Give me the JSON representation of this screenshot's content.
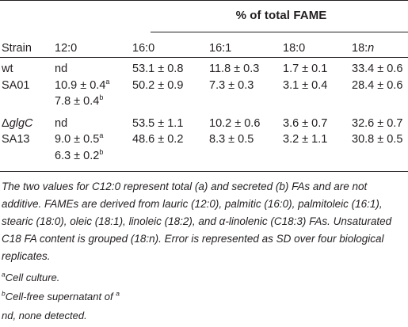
{
  "heading": "% of total FAME",
  "columns": [
    "Strain",
    "12:0",
    "16:0",
    "16:1",
    "18:0",
    "18:"
  ],
  "columns_italic_suffix": "n",
  "rows": [
    {
      "strain_prefix": "",
      "strain_italic": "",
      "strain": "wt",
      "c12": "nd",
      "c12_sup": "",
      "c12b": "",
      "c12b_sup": "",
      "c16": "53.1 ± 0.8",
      "c161": "11.8 ± 0.3",
      "c18": "1.7 ± 0.1",
      "c18n": "33.4 ± 0.6"
    },
    {
      "strain_prefix": "",
      "strain_italic": "",
      "strain": "SA01",
      "c12": "10.9 ± 0.4",
      "c12_sup": "a",
      "c12b": "7.8 ± 0.4",
      "c12b_sup": "b",
      "c16": "50.2 ± 0.9",
      "c161": "7.3 ± 0.3",
      "c18": "3.1 ± 0.4",
      "c18n": "28.4 ± 0.6"
    },
    {
      "strain_prefix": "Δ",
      "strain_italic": "glgC",
      "strain": "",
      "c12": "nd",
      "c12_sup": "",
      "c12b": "",
      "c12b_sup": "",
      "c16": "53.5 ± 1.1",
      "c161": "10.2 ± 0.6",
      "c18": "3.6 ± 0.7",
      "c18n": "32.6 ± 0.7"
    },
    {
      "strain_prefix": "",
      "strain_italic": "",
      "strain": "SA13",
      "c12": "9.0 ± 0.5",
      "c12_sup": "a",
      "c12b": "6.3 ± 0.2",
      "c12b_sup": "b",
      "c16": "48.6 ± 0.2",
      "c161": "8.3 ± 0.5",
      "c18": "3.2 ± 1.1",
      "c18n": "30.8 ± 0.5"
    }
  ],
  "footnote_lines": [
    "The two values for C12:0 represent total (a) and secreted (b) FAs and are not",
    "additive. FAMEs are derived from lauric (12:0), palmitic (16:0), palmitoleic (16:1),",
    "stearic (18:0), oleic (18:1), linoleic (18:2), and α-linolenic (C18:3) FAs. Unsaturated",
    "C18 FA content is grouped (18:n). Error is represented as SD over four biological",
    "replicates."
  ],
  "notes": [
    {
      "mark": "a",
      "text": "Cell culture.",
      "trailing_mark": ""
    },
    {
      "mark": "b",
      "text": "Cell-free supernatant of ",
      "trailing_mark": "a"
    },
    {
      "mark": "",
      "text": "nd, none detected.",
      "trailing_mark": ""
    }
  ]
}
